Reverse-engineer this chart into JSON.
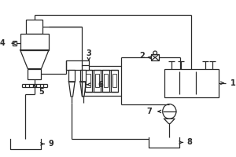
{
  "line_color": "#2a2a2a",
  "lw": 0.9,
  "fig_width": 3.0,
  "fig_height": 2.0,
  "dpi": 100,
  "xlim": [
    0,
    3.0
  ],
  "ylim": [
    0,
    2.0
  ]
}
